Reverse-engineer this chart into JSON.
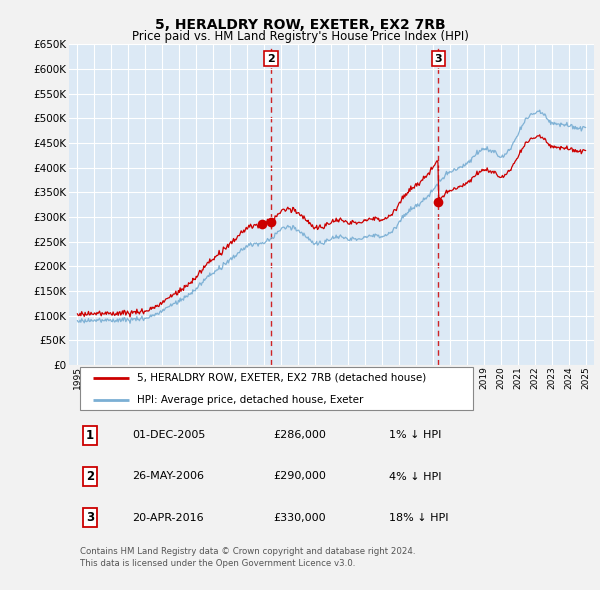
{
  "title": "5, HERALDRY ROW, EXETER, EX2 7RB",
  "subtitle": "Price paid vs. HM Land Registry's House Price Index (HPI)",
  "ylim": [
    0,
    650000
  ],
  "yticks": [
    0,
    50000,
    100000,
    150000,
    200000,
    250000,
    300000,
    350000,
    400000,
    450000,
    500000,
    550000,
    600000,
    650000
  ],
  "xlim_start": 1994.5,
  "xlim_end": 2025.5,
  "bg_color": "#f2f2f2",
  "plot_bg_color": "#dce9f5",
  "grid_color": "#ffffff",
  "sale_color": "#cc0000",
  "hpi_color": "#7bafd4",
  "sales": [
    {
      "num": 1,
      "year": 2005.917,
      "price": 286000
    },
    {
      "num": 2,
      "year": 2006.42,
      "price": 290000
    },
    {
      "num": 3,
      "year": 2016.3,
      "price": 330000
    }
  ],
  "vline_sales": [
    2,
    3
  ],
  "legend_line1": "5, HERALDRY ROW, EXETER, EX2 7RB (detached house)",
  "legend_line2": "HPI: Average price, detached house, Exeter",
  "table_rows": [
    {
      "num": 1,
      "date": "01-DEC-2005",
      "price": "£286,000",
      "hpi": "1% ↓ HPI"
    },
    {
      "num": 2,
      "date": "26-MAY-2006",
      "price": "£290,000",
      "hpi": "4% ↓ HPI"
    },
    {
      "num": 3,
      "date": "20-APR-2016",
      "price": "£330,000",
      "hpi": "18% ↓ HPI"
    }
  ],
  "footer": "Contains HM Land Registry data © Crown copyright and database right 2024.\nThis data is licensed under the Open Government Licence v3.0.",
  "hpi_anchors_x": [
    1995.0,
    1996.0,
    1997.0,
    1998.0,
    1999.0,
    2000.0,
    2001.0,
    2002.0,
    2003.0,
    2004.0,
    2005.0,
    2006.0,
    2007.0,
    2007.8,
    2008.5,
    2009.0,
    2009.5,
    2010.0,
    2010.5,
    2011.0,
    2011.5,
    2012.0,
    2012.5,
    2013.0,
    2013.5,
    2014.0,
    2014.5,
    2015.0,
    2015.5,
    2016.0,
    2016.5,
    2017.0,
    2017.5,
    2018.0,
    2018.5,
    2019.0,
    2019.5,
    2020.0,
    2020.5,
    2021.0,
    2021.5,
    2022.0,
    2022.3,
    2022.6,
    2023.0,
    2023.5,
    2024.0,
    2024.5,
    2025.0
  ],
  "hpi_anchors_y": [
    88000,
    90000,
    92000,
    90000,
    96000,
    108000,
    130000,
    155000,
    185000,
    215000,
    238000,
    250000,
    272000,
    278000,
    265000,
    248000,
    242000,
    255000,
    262000,
    258000,
    256000,
    255000,
    260000,
    265000,
    272000,
    288000,
    305000,
    322000,
    340000,
    358000,
    372000,
    388000,
    402000,
    415000,
    428000,
    432000,
    430000,
    425000,
    440000,
    465000,
    490000,
    510000,
    520000,
    515000,
    495000,
    485000,
    478000,
    482000,
    488000
  ]
}
